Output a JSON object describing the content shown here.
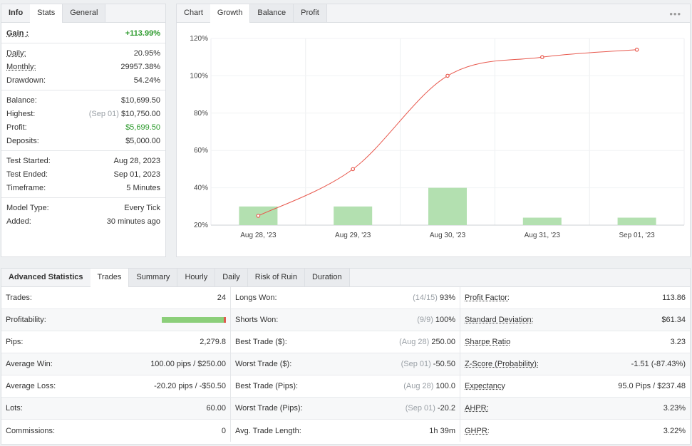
{
  "info": {
    "tabs": [
      "Info",
      "Stats",
      "General"
    ],
    "rows": [
      {
        "label": "Gain :",
        "value": "+113.99%"
      },
      {
        "label": "Daily:",
        "value": "20.95%"
      },
      {
        "label": "Monthly:",
        "value": "29957.38%"
      },
      {
        "label": "Drawdown:",
        "value": "54.24%"
      },
      {
        "label": "Balance:",
        "value": "$10,699.50"
      },
      {
        "label": "Highest:",
        "note": "(Sep 01)",
        "value": "$10,750.00"
      },
      {
        "label": "Profit:",
        "value": "$5,699.50"
      },
      {
        "label": "Deposits:",
        "value": "$5,000.00"
      },
      {
        "label": "Test Started:",
        "value": "Aug 28, 2023"
      },
      {
        "label": "Test Ended:",
        "value": "Sep 01, 2023"
      },
      {
        "label": "Timeframe:",
        "value": "5 Minutes"
      },
      {
        "label": "Model Type:",
        "value": "Every Tick"
      },
      {
        "label": "Added:",
        "value": "30 minutes ago"
      }
    ]
  },
  "chart_panel": {
    "tabs": [
      "Chart",
      "Growth",
      "Balance",
      "Profit"
    ],
    "more": "•••"
  },
  "chart_data": {
    "type": "line",
    "x": [
      "Aug 28, '23",
      "Aug 29, '23",
      "Aug 30, '23",
      "Aug 31, '23",
      "Sep 01, '23"
    ],
    "series": [
      {
        "values": [
          25,
          50,
          100,
          110,
          114
        ]
      },
      {
        "values": [
          30,
          30,
          40,
          24,
          24
        ]
      }
    ],
    "yticks": [
      "20%",
      "40%",
      "60%",
      "80%",
      "100%",
      "120%"
    ],
    "ylim": [
      20,
      120
    ],
    "colors": {
      "line": "#e8594e",
      "bar": "#b3e0b0"
    }
  },
  "advanced": {
    "tabs": [
      "Advanced Statistics",
      "Trades",
      "Summary",
      "Hourly",
      "Daily",
      "Risk of Ruin",
      "Duration"
    ],
    "col1": [
      {
        "label": "Trades:",
        "value": "24"
      },
      {
        "label": "Profitability:",
        "value": ""
      },
      {
        "label": "Pips:",
        "value": "2,279.8"
      },
      {
        "label": "Average Win:",
        "value": "100.00 pips / $250.00"
      },
      {
        "label": "Average Loss:",
        "value": "-20.20 pips / -$50.50"
      },
      {
        "label": "Lots:",
        "value": "60.00"
      },
      {
        "label": "Commissions:",
        "value": "0"
      }
    ],
    "profitability": {
      "win_fraction": 0.97
    },
    "col2": [
      {
        "label": "Longs Won:",
        "note": "(14/15)",
        "value": "93%"
      },
      {
        "label": "Shorts Won:",
        "note": "(9/9)",
        "value": "100%"
      },
      {
        "label": "Best Trade ($):",
        "note": "(Aug 28)",
        "value": "250.00"
      },
      {
        "label": "Worst Trade ($):",
        "note": "(Sep 01)",
        "value": "-50.50"
      },
      {
        "label": "Best Trade (Pips):",
        "note": "(Aug 28)",
        "value": "100.0"
      },
      {
        "label": "Worst Trade (Pips):",
        "note": "(Sep 01)",
        "value": "-20.2"
      },
      {
        "label": "Avg. Trade Length:",
        "note": "",
        "value": "1h 39m"
      }
    ],
    "col3": [
      {
        "label": "Profit Factor:",
        "value": "113.86"
      },
      {
        "label": "Standard Deviation:",
        "value": "$61.34"
      },
      {
        "label": "Sharpe Ratio",
        "value": "3.23"
      },
      {
        "label": "Z-Score (Probability):",
        "value": "-1.51 (-87.43%)"
      },
      {
        "label": "Expectancy",
        "value": "95.0 Pips / $237.48"
      },
      {
        "label": "AHPR:",
        "value": "3.23%"
      },
      {
        "label": "GHPR:",
        "value": "3.22%"
      }
    ]
  }
}
